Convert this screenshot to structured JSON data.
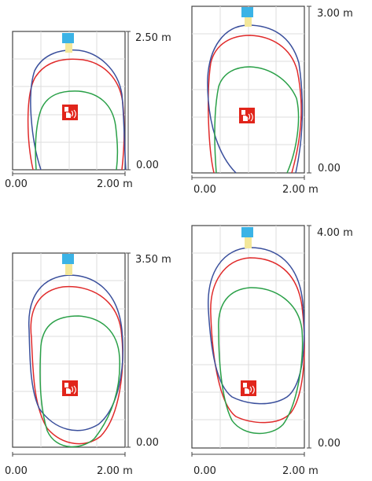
{
  "colors": {
    "frame": "#444444",
    "grid": "#dddddd",
    "lamp": "#3bb3e6",
    "beam": "#f3e79a",
    "sign": "#e1251b",
    "contour_blue": "#3a4f9c",
    "contour_red": "#e02a2a",
    "contour_green": "#2aa048"
  },
  "icons": {
    "luminaire": "ceiling-lamp-icon",
    "sign": "fire-alarm-call-point-icon"
  },
  "panels": [
    {
      "height_label": "2.50 m",
      "zero_label": "0.00",
      "x_start_label": "0.00",
      "x_end_label": "2.00 m",
      "mounting_height_m": 2.5,
      "sign_position": [
        1.0,
        1.0
      ]
    },
    {
      "height_label": "3.00 m",
      "zero_label": "0.00",
      "x_start_label": "0.00",
      "x_end_label": "2.00 m",
      "mounting_height_m": 3.0,
      "sign_position": [
        1.0,
        1.0
      ]
    },
    {
      "height_label": "3.50 m",
      "zero_label": "0.00",
      "x_start_label": "0.00",
      "x_end_label": "2.00 m",
      "mounting_height_m": 3.5,
      "sign_position": [
        1.0,
        1.0
      ]
    },
    {
      "height_label": "4.00 m",
      "zero_label": "0.00",
      "x_start_label": "0.00",
      "x_end_label": "2.00 m",
      "mounting_height_m": 4.0,
      "sign_position": [
        1.0,
        1.0
      ]
    }
  ]
}
